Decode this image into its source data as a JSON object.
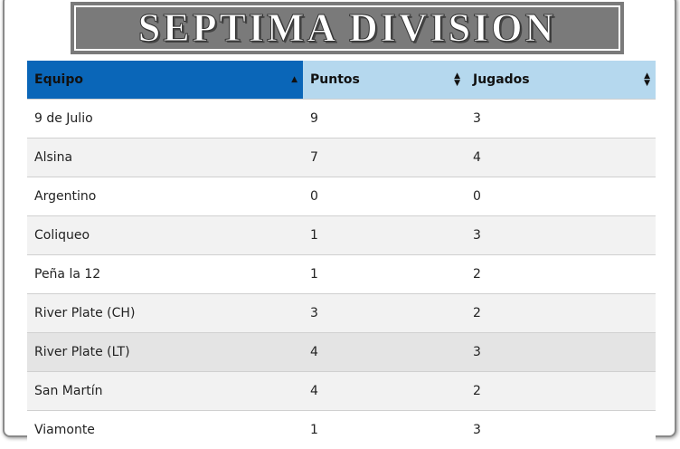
{
  "header": {
    "title": "SEPTIMA DIVISION"
  },
  "table": {
    "columns": [
      "Equipo",
      "Puntos",
      "Jugados"
    ],
    "rows": [
      [
        "9 de Julio",
        9,
        3
      ],
      [
        "Alsina",
        7,
        4
      ],
      [
        "Argentino",
        0,
        0
      ],
      [
        "Coliqueo",
        1,
        3
      ],
      [
        "Peña la 12",
        1,
        2
      ],
      [
        "River Plate (CH)",
        3,
        2
      ],
      [
        "River Plate (LT)",
        4,
        3
      ],
      [
        "San Martín",
        4,
        2
      ],
      [
        "Viamonte",
        1,
        3
      ]
    ]
  }
}
